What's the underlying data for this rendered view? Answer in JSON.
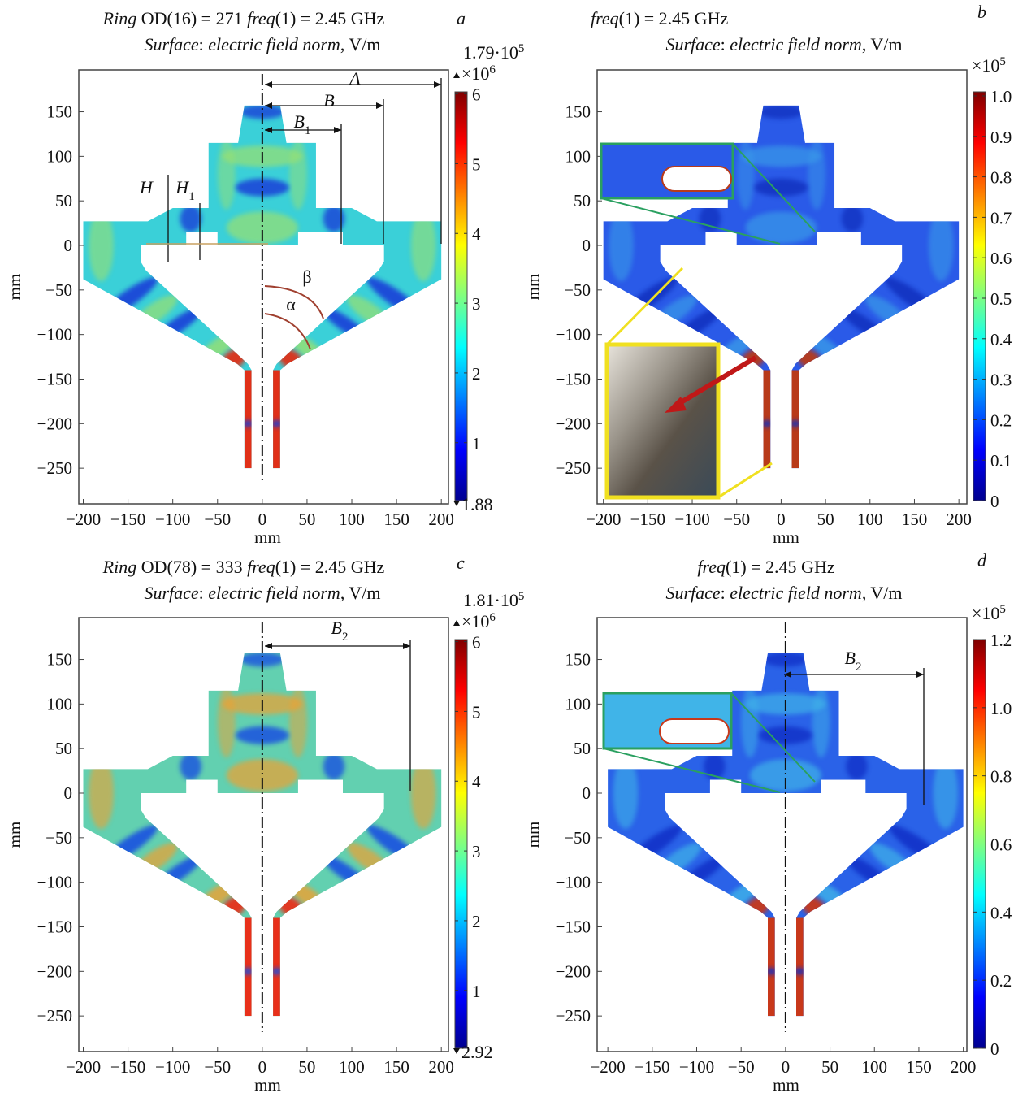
{
  "colormap": [
    "#00008f",
    "#0000ff",
    "#0080ff",
    "#00ffff",
    "#80ff80",
    "#ffff00",
    "#ff8000",
    "#ff0000",
    "#800000"
  ],
  "panels": [
    {
      "letter": "a",
      "title": [
        {
          "text": "Ring",
          "italic": true
        },
        {
          "text": " OD(16) = 271 ",
          "italic": false
        },
        {
          "text": "freq",
          "italic": true
        },
        {
          "text": "(1) = 2.45 GHz",
          "italic": false
        }
      ],
      "subtitle": [
        {
          "text": "Surface",
          "italic": true
        },
        {
          "text": ": ",
          "italic": false
        },
        {
          "text": "electric field norm",
          "italic": true
        },
        {
          "text": ", V/m",
          "italic": false
        }
      ],
      "xlabel": "mm",
      "ylabel": "mm",
      "xlim": [
        -205,
        208
      ],
      "ylim": [
        -290,
        197
      ],
      "xticks": [
        {
          "value": -200,
          "label": "−200"
        },
        {
          "value": -150,
          "label": "−150"
        },
        {
          "value": -100,
          "label": "−100"
        },
        {
          "value": -50,
          "label": "−50"
        },
        0,
        50,
        100,
        150,
        200
      ],
      "yticks": [
        {
          "value": -250,
          "label": "−250"
        },
        {
          "value": -200,
          "label": "−200"
        },
        {
          "value": -150,
          "label": "−150"
        },
        {
          "value": -100,
          "label": "−100"
        },
        {
          "value": -50,
          "label": "−50"
        },
        0,
        50,
        100,
        150
      ],
      "colorbar": {
        "clim": [
          0.17,
          6.03
        ],
        "ticks": [
          1,
          2,
          3,
          4,
          5,
          6
        ],
        "unit": {
          "base": "×10",
          "exp": "6"
        },
        "max_label": {
          "base": "1.79·10",
          "exp": "5"
        },
        "min_label": "1.88"
      },
      "field": {
        "base": "#3ad0d8",
        "hot": "#e03018",
        "cold": "#1a3fd8",
        "warm": "#9ae070"
      },
      "axis_line": true,
      "annotations": [
        {
          "base": "A"
        },
        {
          "base": "B"
        },
        {
          "base": "B",
          "sub": "1"
        },
        {
          "base": "H"
        },
        {
          "base": "H",
          "sub": "1"
        },
        {
          "base": "β"
        },
        {
          "base": "α"
        }
      ]
    },
    {
      "letter": "b",
      "title": [
        {
          "text": "freq",
          "italic": true
        },
        {
          "text": "(1) = 2.45 GHz",
          "italic": false
        }
      ],
      "subtitle": [
        {
          "text": "Surface",
          "italic": true
        },
        {
          "text": ": ",
          "italic": false
        },
        {
          "text": "electric field norm",
          "italic": true
        },
        {
          "text": ", V/m",
          "italic": false
        }
      ],
      "xlabel": "mm",
      "ylabel": "mm",
      "xlim": [
        -207,
        209
      ],
      "ylim": [
        -290,
        197
      ],
      "xticks": [
        {
          "value": -200,
          "label": "−200"
        },
        {
          "value": -150,
          "label": "−150"
        },
        {
          "value": -100,
          "label": "−100"
        },
        {
          "value": -50,
          "label": "−50"
        },
        0,
        50,
        100,
        150,
        200
      ],
      "yticks": [
        {
          "value": -250,
          "label": "−250"
        },
        {
          "value": -200,
          "label": "−200"
        },
        {
          "value": -150,
          "label": "−150"
        },
        {
          "value": -100,
          "label": "−100"
        },
        {
          "value": -50,
          "label": "−50"
        },
        0,
        50,
        100,
        150
      ],
      "colorbar": {
        "clim": [
          0,
          1.01
        ],
        "ticks": [
          0,
          0.1,
          0.2,
          0.3,
          0.4,
          0.5,
          0.6,
          0.7,
          0.8,
          0.9,
          {
            "value": 1,
            "label": "1.0"
          }
        ],
        "unit": {
          "base": "×10",
          "exp": "5"
        }
      },
      "field": {
        "base": "#2a5ae8",
        "hot": "#b83a1a",
        "cold": "#1232c0",
        "warm": "#3a9ae8"
      },
      "axis_line": false,
      "annotations": []
    },
    {
      "letter": "c",
      "title": [
        {
          "text": "Ring",
          "italic": true
        },
        {
          "text": " OD(78) = 333 ",
          "italic": false
        },
        {
          "text": "freq",
          "italic": true
        },
        {
          "text": "(1) = 2.45 GHz",
          "italic": false
        }
      ],
      "subtitle": [
        {
          "text": "Surface",
          "italic": true
        },
        {
          "text": ": ",
          "italic": false
        },
        {
          "text": "electric field norm",
          "italic": true
        },
        {
          "text": ", V/m",
          "italic": false
        }
      ],
      "xlabel": "mm",
      "ylabel": "mm",
      "xlim": [
        -205,
        208
      ],
      "ylim": [
        -290,
        197
      ],
      "xticks": [
        {
          "value": -200,
          "label": "−200"
        },
        {
          "value": -150,
          "label": "−150"
        },
        {
          "value": -100,
          "label": "−100"
        },
        {
          "value": -50,
          "label": "−50"
        },
        0,
        50,
        100,
        150,
        200
      ],
      "yticks": [
        {
          "value": -250,
          "label": "−250"
        },
        {
          "value": -200,
          "label": "−200"
        },
        {
          "value": -150,
          "label": "−150"
        },
        {
          "value": -100,
          "label": "−100"
        },
        {
          "value": -50,
          "label": "−50"
        },
        0,
        50,
        100,
        150
      ],
      "colorbar": {
        "clim": [
          0.17,
          6.03
        ],
        "ticks": [
          1,
          2,
          3,
          4,
          5,
          6
        ],
        "unit": {
          "base": "×10",
          "exp": "6"
        },
        "max_label": {
          "base": "1.81·10",
          "exp": "5"
        },
        "min_label": "2.92"
      },
      "field": {
        "base": "#62d0b0",
        "hot": "#e8301a",
        "cold": "#1a50e0",
        "warm": "#f0a030"
      },
      "axis_line": true,
      "annotations": [
        {
          "base": "B",
          "sub": "2"
        }
      ]
    },
    {
      "letter": "d",
      "title": [
        {
          "text": "freq",
          "italic": true
        },
        {
          "text": "(1) = 2.45 GHz",
          "italic": false
        }
      ],
      "subtitle": [
        {
          "text": "Surface",
          "italic": true
        },
        {
          "text": ": ",
          "italic": false
        },
        {
          "text": "electric field norm",
          "italic": true
        },
        {
          "text": ", V/m",
          "italic": false
        }
      ],
      "xlabel": "mm",
      "ylabel": "mm",
      "xlim": [
        -212,
        204
      ],
      "ylim": [
        -290,
        197
      ],
      "xticks": [
        {
          "value": -200,
          "label": "−200"
        },
        {
          "value": -150,
          "label": "−150"
        },
        {
          "value": -100,
          "label": "−100"
        },
        {
          "value": -50,
          "label": "−50"
        },
        0,
        50,
        100,
        150,
        200
      ],
      "yticks": [
        {
          "value": -250,
          "label": "−250"
        },
        {
          "value": -200,
          "label": "−200"
        },
        {
          "value": -150,
          "label": "−150"
        },
        {
          "value": -100,
          "label": "−100"
        },
        {
          "value": -50,
          "label": "−50"
        },
        0,
        50,
        100,
        150
      ],
      "colorbar": {
        "clim": [
          0,
          1.2
        ],
        "ticks": [
          0,
          0.2,
          0.4,
          0.6,
          0.8,
          {
            "value": 1,
            "label": "1.0"
          },
          1.2
        ],
        "unit": {
          "base": "×10",
          "exp": "5"
        }
      },
      "field": {
        "base": "#2a62e8",
        "hot": "#c8381a",
        "cold": "#1232c8",
        "warm": "#40b4e8"
      },
      "axis_line": true,
      "annotations": [
        {
          "base": "B",
          "sub": "2"
        }
      ]
    }
  ]
}
